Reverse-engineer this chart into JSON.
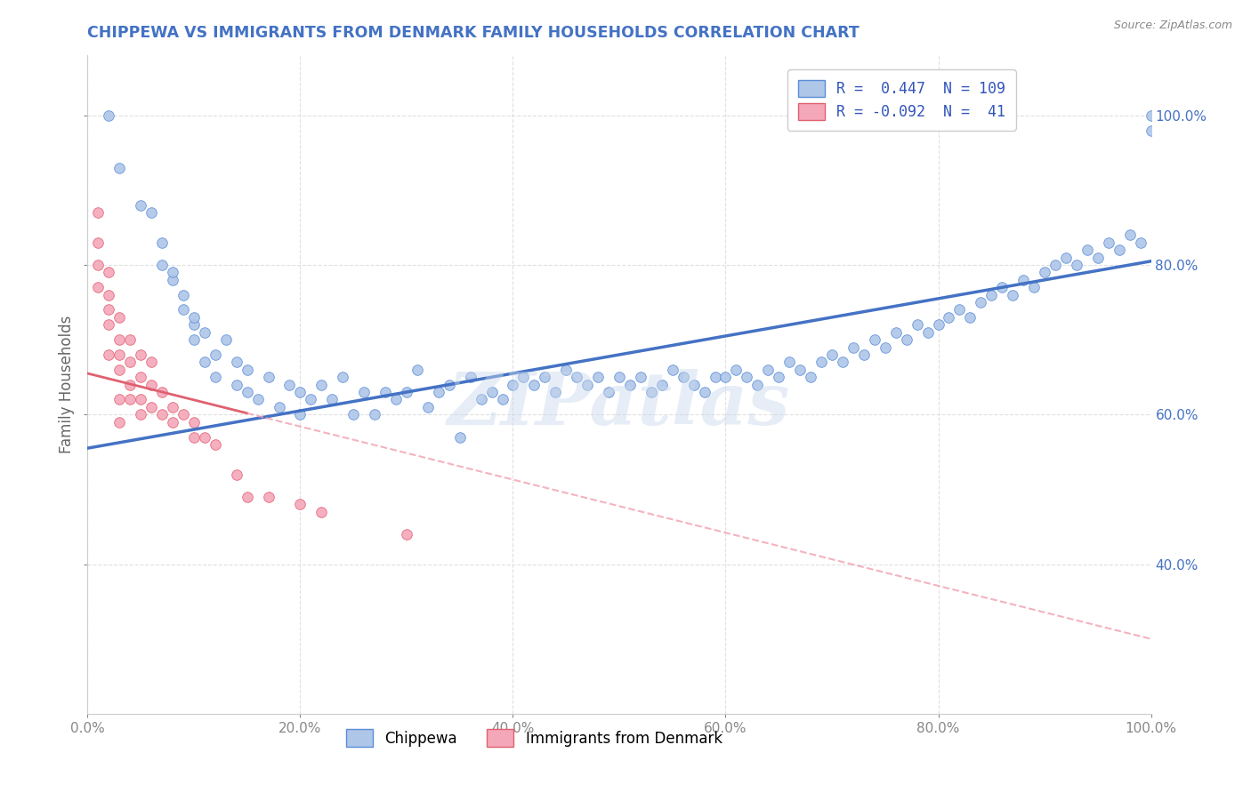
{
  "title": "CHIPPEWA VS IMMIGRANTS FROM DENMARK FAMILY HOUSEHOLDS CORRELATION CHART",
  "source": "Source: ZipAtlas.com",
  "xlabel": "",
  "ylabel": "Family Households",
  "r_blue": 0.447,
  "n_blue": 109,
  "r_pink": -0.092,
  "n_pink": 41,
  "xlim": [
    0.0,
    1.0
  ],
  "ylim": [
    0.2,
    1.08
  ],
  "yticks_right": [
    0.4,
    0.6,
    0.8,
    1.0
  ],
  "ytick_right_labels": [
    "40.0%",
    "60.0%",
    "80.0%",
    "100.0%"
  ],
  "xticks": [
    0.0,
    0.2,
    0.4,
    0.6,
    0.8,
    1.0
  ],
  "xtick_labels": [
    "0.0%",
    "20.0%",
    "40.0%",
    "60.0%",
    "80.0%",
    "100.0%"
  ],
  "legend_blue_label": "Chippewa",
  "legend_pink_label": "Immigrants from Denmark",
  "color_blue": "#aec6e8",
  "color_pink": "#f4a7b9",
  "edge_blue": "#5b8dd9",
  "edge_pink": "#e06070",
  "line_blue": "#4472c4",
  "line_pink": "#f0a0b0",
  "title_color": "#4472c4",
  "axis_label_color": "#4472c4",
  "source_color": "#888888",
  "watermark": "ZIPatlas",
  "grid_color": "#dddddd",
  "blue_scatter_x": [
    0.02,
    0.03,
    0.05,
    0.06,
    0.07,
    0.07,
    0.08,
    0.08,
    0.09,
    0.09,
    0.1,
    0.1,
    0.1,
    0.11,
    0.11,
    0.12,
    0.12,
    0.13,
    0.14,
    0.14,
    0.15,
    0.15,
    0.16,
    0.17,
    0.18,
    0.19,
    0.2,
    0.2,
    0.21,
    0.22,
    0.23,
    0.24,
    0.25,
    0.26,
    0.27,
    0.28,
    0.29,
    0.3,
    0.31,
    0.32,
    0.33,
    0.34,
    0.35,
    0.36,
    0.37,
    0.38,
    0.39,
    0.4,
    0.41,
    0.42,
    0.43,
    0.44,
    0.45,
    0.46,
    0.47,
    0.48,
    0.49,
    0.5,
    0.51,
    0.52,
    0.53,
    0.54,
    0.55,
    0.56,
    0.57,
    0.58,
    0.59,
    0.6,
    0.61,
    0.62,
    0.63,
    0.64,
    0.65,
    0.66,
    0.67,
    0.68,
    0.69,
    0.7,
    0.71,
    0.72,
    0.73,
    0.74,
    0.75,
    0.76,
    0.77,
    0.78,
    0.79,
    0.8,
    0.81,
    0.82,
    0.83,
    0.84,
    0.85,
    0.86,
    0.87,
    0.88,
    0.89,
    0.9,
    0.91,
    0.92,
    0.93,
    0.94,
    0.95,
    0.96,
    0.97,
    0.98,
    0.99,
    1.0,
    1.0
  ],
  "blue_scatter_y": [
    1.0,
    0.93,
    0.88,
    0.87,
    0.83,
    0.8,
    0.78,
    0.79,
    0.74,
    0.76,
    0.72,
    0.73,
    0.7,
    0.67,
    0.71,
    0.68,
    0.65,
    0.7,
    0.64,
    0.67,
    0.63,
    0.66,
    0.62,
    0.65,
    0.61,
    0.64,
    0.6,
    0.63,
    0.62,
    0.64,
    0.62,
    0.65,
    0.6,
    0.63,
    0.6,
    0.63,
    0.62,
    0.63,
    0.66,
    0.61,
    0.63,
    0.64,
    0.57,
    0.65,
    0.62,
    0.63,
    0.62,
    0.64,
    0.65,
    0.64,
    0.65,
    0.63,
    0.66,
    0.65,
    0.64,
    0.65,
    0.63,
    0.65,
    0.64,
    0.65,
    0.63,
    0.64,
    0.66,
    0.65,
    0.64,
    0.63,
    0.65,
    0.65,
    0.66,
    0.65,
    0.64,
    0.66,
    0.65,
    0.67,
    0.66,
    0.65,
    0.67,
    0.68,
    0.67,
    0.69,
    0.68,
    0.7,
    0.69,
    0.71,
    0.7,
    0.72,
    0.71,
    0.72,
    0.73,
    0.74,
    0.73,
    0.75,
    0.76,
    0.77,
    0.76,
    0.78,
    0.77,
    0.79,
    0.8,
    0.81,
    0.8,
    0.82,
    0.81,
    0.83,
    0.82,
    0.84,
    0.83,
    0.98,
    1.0
  ],
  "pink_scatter_x": [
    0.01,
    0.01,
    0.01,
    0.01,
    0.02,
    0.02,
    0.02,
    0.02,
    0.02,
    0.03,
    0.03,
    0.03,
    0.03,
    0.03,
    0.03,
    0.04,
    0.04,
    0.04,
    0.04,
    0.05,
    0.05,
    0.05,
    0.05,
    0.06,
    0.06,
    0.06,
    0.07,
    0.07,
    0.08,
    0.08,
    0.09,
    0.1,
    0.1,
    0.11,
    0.12,
    0.14,
    0.15,
    0.17,
    0.2,
    0.22,
    0.3
  ],
  "pink_scatter_y": [
    0.87,
    0.83,
    0.8,
    0.77,
    0.79,
    0.76,
    0.74,
    0.72,
    0.68,
    0.73,
    0.7,
    0.68,
    0.66,
    0.62,
    0.59,
    0.7,
    0.67,
    0.64,
    0.62,
    0.68,
    0.65,
    0.62,
    0.6,
    0.67,
    0.64,
    0.61,
    0.63,
    0.6,
    0.61,
    0.59,
    0.6,
    0.59,
    0.57,
    0.57,
    0.56,
    0.52,
    0.49,
    0.49,
    0.48,
    0.47,
    0.44
  ],
  "blue_trend_x0": 0.0,
  "blue_trend_y0": 0.555,
  "blue_trend_x1": 1.0,
  "blue_trend_y1": 0.805,
  "pink_trend_x0": 0.0,
  "pink_trend_y0": 0.655,
  "pink_trend_x1": 1.0,
  "pink_trend_y1": 0.3
}
